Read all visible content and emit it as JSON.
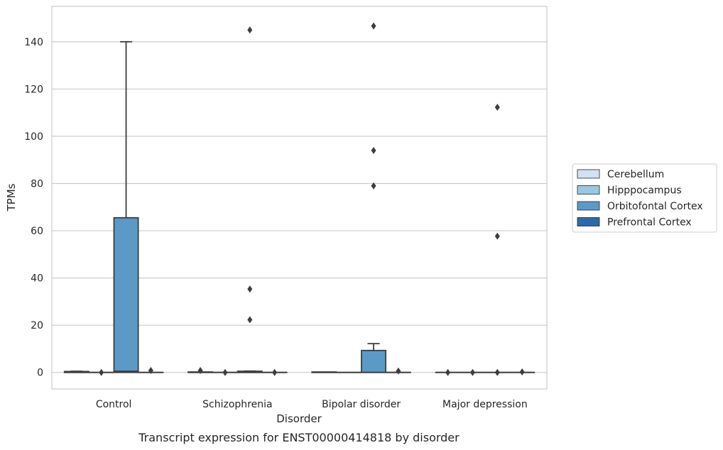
{
  "chart_data": {
    "type": "box",
    "caption": "Transcript expression for ENST00000414818 by disorder",
    "xlabel": "Disorder",
    "ylabel": "TPMs",
    "ylim": [
      -7,
      155
    ],
    "yticks": [
      0,
      20,
      40,
      60,
      80,
      100,
      120,
      140
    ],
    "grid": true,
    "legend_position": "right",
    "categories": [
      "Control",
      "Schizophrenia",
      "Bipolar disorder",
      "Major depression"
    ],
    "series": [
      {
        "name": "Cerebellum",
        "color": "#d1e2f2",
        "boxes": [
          {
            "q1": 0,
            "median": 0,
            "q3": 0.4,
            "whisker_low": 0,
            "whisker_high": 0.5,
            "outliers": []
          },
          {
            "q1": 0,
            "median": 0,
            "q3": 0.2,
            "whisker_low": 0,
            "whisker_high": 0.2,
            "outliers": [
              0.8
            ]
          },
          {
            "q1": 0,
            "median": 0,
            "q3": 0.2,
            "whisker_low": 0,
            "whisker_high": 0.2,
            "outliers": []
          },
          {
            "q1": 0,
            "median": 0,
            "q3": 0,
            "whisker_low": 0,
            "whisker_high": 0,
            "outliers": [
              0
            ]
          }
        ]
      },
      {
        "name": "Hipppocampus",
        "color": "#9ac8e0",
        "boxes": [
          {
            "q1": 0,
            "median": 0,
            "q3": 0,
            "whisker_low": 0,
            "whisker_high": 0,
            "outliers": [
              0
            ]
          },
          {
            "q1": 0,
            "median": 0,
            "q3": 0,
            "whisker_low": 0,
            "whisker_high": 0,
            "outliers": [
              0
            ]
          },
          {
            "q1": 0,
            "median": 0,
            "q3": 0,
            "whisker_low": 0,
            "whisker_high": 0,
            "outliers": []
          },
          {
            "q1": 0,
            "median": 0,
            "q3": 0,
            "whisker_low": 0,
            "whisker_high": 0,
            "outliers": [
              0
            ]
          }
        ]
      },
      {
        "name": "Orbitofontal Cortex",
        "color": "#5b9ac6",
        "boxes": [
          {
            "q1": 0,
            "median": 0.5,
            "q3": 65.5,
            "whisker_low": 0,
            "whisker_high": 140,
            "outliers": []
          },
          {
            "q1": 0,
            "median": 0,
            "q3": 0.5,
            "whisker_low": 0,
            "whisker_high": 0.6,
            "outliers": [
              145,
              35.3,
              22.3
            ]
          },
          {
            "q1": 0,
            "median": 0,
            "q3": 9.3,
            "whisker_low": 0,
            "whisker_high": 12.2,
            "outliers": [
              146.7,
              94,
              79
            ]
          },
          {
            "q1": 0,
            "median": 0,
            "q3": 0,
            "whisker_low": 0,
            "whisker_high": 0,
            "outliers": [
              112.3,
              57.7,
              0
            ]
          }
        ]
      },
      {
        "name": "Prefrontal Cortex",
        "color": "#2c6aa8",
        "boxes": [
          {
            "q1": 0,
            "median": 0,
            "q3": 0,
            "whisker_low": 0,
            "whisker_high": 0,
            "outliers": [
              0.8
            ]
          },
          {
            "q1": 0,
            "median": 0,
            "q3": 0,
            "whisker_low": 0,
            "whisker_high": 0,
            "outliers": [
              0
            ]
          },
          {
            "q1": 0,
            "median": 0,
            "q3": 0,
            "whisker_low": 0,
            "whisker_high": 0,
            "outliers": [
              0.6
            ]
          },
          {
            "q1": 0,
            "median": 0,
            "q3": 0,
            "whisker_low": 0,
            "whisker_high": 0,
            "outliers": [
              0.2
            ]
          }
        ]
      }
    ]
  }
}
